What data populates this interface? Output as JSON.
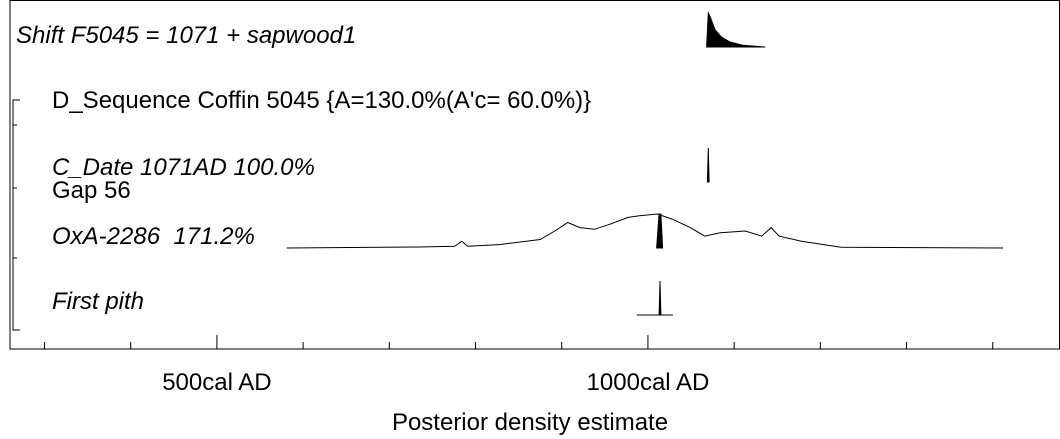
{
  "chart_data": {
    "type": "oxcal",
    "xlabel": "Posterior density estimate",
    "xlim": [
      260,
      1478
    ],
    "xticks": [
      {
        "value": 500,
        "label": "500cal AD"
      },
      {
        "value": 1000,
        "label": "1000cal AD"
      }
    ],
    "xticks_minor": [
      300,
      400,
      600,
      700,
      800,
      900,
      1100,
      1200,
      1300,
      1400
    ],
    "color": "#000000",
    "rows": [
      {
        "label": "Shift F5045 = 1071 + sapwood1",
        "italic": true,
        "posterior_x": [
          1068,
          1070,
          1072,
          1078,
          1085,
          1095,
          1110,
          1136
        ],
        "posterior_values": [
          0,
          1.0,
          0.9,
          0.5,
          0.3,
          0.15,
          0.05,
          0
        ]
      },
      {
        "label": "D_Sequence Coffin 5045 {A=130.0%(A'c= 60.0%)}",
        "italic": false
      },
      {
        "label": "C_Date 1071AD 100.0%",
        "italic": true,
        "posterior_x": [
          1069,
          1070,
          1071
        ],
        "posterior_values": [
          0,
          1.0,
          0
        ]
      },
      {
        "label": "Gap 56",
        "italic": false
      },
      {
        "label": "OxA-2286  171.2%",
        "italic": true,
        "x": [
          581,
          735,
          776,
          784,
          791,
          828,
          875,
          892,
          907,
          921,
          938,
          956,
          977,
          990,
          1011,
          1028,
          1049,
          1066,
          1084,
          1113,
          1132,
          1143,
          1152,
          1178,
          1224,
          1412
        ],
        "values": [
          0,
          0.03,
          0.05,
          0.2,
          0.05,
          0.1,
          0.25,
          0.5,
          0.75,
          0.6,
          0.55,
          0.7,
          0.9,
          0.95,
          1.0,
          0.85,
          0.6,
          0.35,
          0.45,
          0.5,
          0.35,
          0.6,
          0.35,
          0.2,
          0.02,
          0
        ],
        "posterior_x": [
          1010,
          1013,
          1015,
          1017
        ],
        "posterior_values": [
          0,
          1.0,
          1.0,
          0
        ]
      },
      {
        "label": "First pith",
        "italic": true,
        "posterior_x": [
          987,
          1013,
          1014,
          1015,
          1029
        ],
        "posterior_values": [
          0,
          0,
          1.0,
          0,
          0
        ]
      }
    ]
  }
}
